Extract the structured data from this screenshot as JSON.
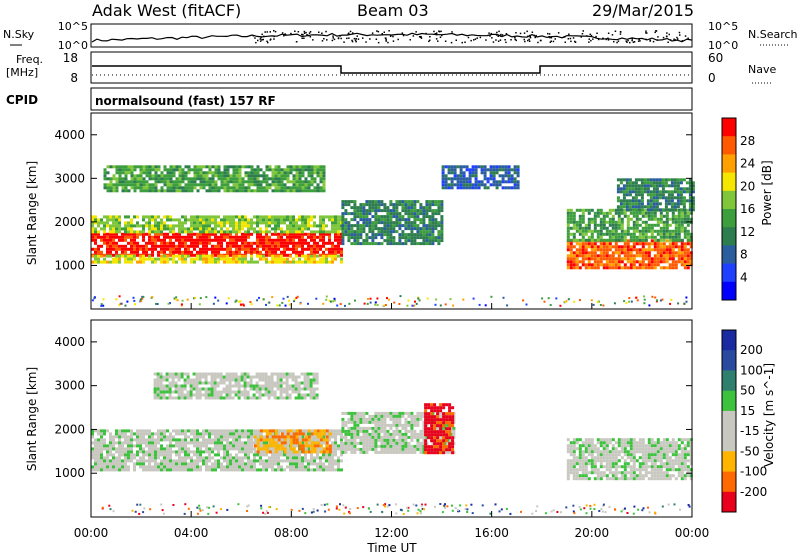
{
  "header": {
    "station": "Adak West (fitACF)",
    "beam": "Beam 03",
    "date": "29/Mar/2015"
  },
  "top_panels": {
    "nsky_label": "N.Sky",
    "nsearch_label": "N.Search",
    "freq_label_line1": "Freq.",
    "freq_label_line2": "[MHz]",
    "nave_label": "Nave",
    "cpid_label": "CPID",
    "cpid_text": "normalsound (fast) 157 RF",
    "noise_ticks_left": [
      "10^5",
      "10^0"
    ],
    "noise_ticks_right": [
      "10^5",
      "10^0"
    ],
    "freq_ticks": [
      "18",
      "8"
    ],
    "nave_ticks": [
      "60",
      "0"
    ]
  },
  "colors": {
    "power": [
      "#0000ff",
      "#1f40ff",
      "#2b5e9e",
      "#2e7d4f",
      "#3c9e3c",
      "#7fc63b",
      "#f5e600",
      "#ff9f00",
      "#ff5a00",
      "#ff0000"
    ],
    "velocity": [
      "#e8001c",
      "#ff6a00",
      "#ffb400",
      "#c8c8c0",
      "#c8c8c0",
      "#3cc23c",
      "#2f7f6f",
      "#2a4aa0",
      "#1a2aa0"
    ]
  },
  "chart_data": [
    {
      "type": "heatmap",
      "name": "power",
      "ylabel": "Slant Range [km]",
      "yticks": [
        "1000",
        "2000",
        "3000",
        "4000"
      ],
      "ylim": [
        0,
        4500
      ],
      "colorbar_label": "Power [dB]",
      "colorbar_ticks": [
        "4",
        "8",
        "12",
        "16",
        "20",
        "24",
        "28"
      ],
      "bands": [
        {
          "t0": 0.0,
          "t1": 10.0,
          "r0": 1250,
          "r1": 1750,
          "level": 9
        },
        {
          "t0": 0.0,
          "t1": 10.0,
          "r0": 1750,
          "r1": 2150,
          "level": 5
        },
        {
          "t0": 0.0,
          "t1": 10.0,
          "r0": 1050,
          "r1": 1250,
          "level": 6
        },
        {
          "t0": 0.5,
          "t1": 9.3,
          "r0": 2700,
          "r1": 3300,
          "level": 4
        },
        {
          "t0": 10.0,
          "t1": 14.0,
          "r0": 1500,
          "r1": 2500,
          "level": 3
        },
        {
          "t0": 14.0,
          "t1": 17.0,
          "r0": 2800,
          "r1": 3300,
          "level": 2
        },
        {
          "t0": 19.0,
          "t1": 24.0,
          "r0": 950,
          "r1": 1600,
          "level": 8
        },
        {
          "t0": 19.0,
          "t1": 24.0,
          "r0": 1600,
          "r1": 2300,
          "level": 4
        },
        {
          "t0": 21.0,
          "t1": 24.0,
          "r0": 2300,
          "r1": 3000,
          "level": 3
        }
      ]
    },
    {
      "type": "heatmap",
      "name": "velocity",
      "ylabel": "Slant Range [km]",
      "yticks": [
        "1000",
        "2000",
        "3000",
        "4000"
      ],
      "ylim": [
        0,
        4500
      ],
      "colorbar_label": "Velocity [m s^-1]",
      "colorbar_ticks": [
        "200",
        "100",
        "50",
        "15",
        "-15",
        "-50",
        "-100",
        "-200"
      ],
      "bands": [
        {
          "t0": 0.0,
          "t1": 10.0,
          "r0": 1100,
          "r1": 2000,
          "level": 4
        },
        {
          "t0": 2.5,
          "t1": 9.0,
          "r0": 2700,
          "r1": 3300,
          "level": 4
        },
        {
          "t0": 10.0,
          "t1": 14.5,
          "r0": 1500,
          "r1": 2400,
          "level": 4
        },
        {
          "t0": 19.0,
          "t1": 24.0,
          "r0": 900,
          "r1": 1800,
          "level": 4
        },
        {
          "t0": 6.5,
          "t1": 9.5,
          "r0": 1500,
          "r1": 2000,
          "level": 2
        },
        {
          "t0": 13.3,
          "t1": 14.4,
          "r0": 1500,
          "r1": 2600,
          "level": 0
        }
      ]
    }
  ],
  "x_axis": {
    "label": "Time UT",
    "ticks": [
      "00:00",
      "04:00",
      "08:00",
      "12:00",
      "16:00",
      "20:00",
      "00:00"
    ],
    "xlim_hours": [
      0,
      24
    ]
  }
}
